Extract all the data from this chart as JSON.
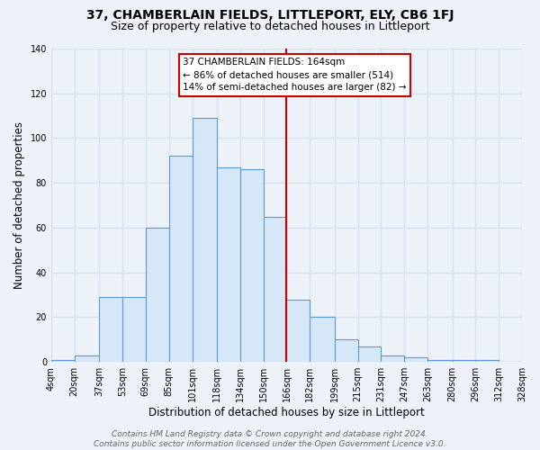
{
  "title": "37, CHAMBERLAIN FIELDS, LITTLEPORT, ELY, CB6 1FJ",
  "subtitle": "Size of property relative to detached houses in Littleport",
  "xlabel": "Distribution of detached houses by size in Littleport",
  "ylabel": "Number of detached properties",
  "bin_labels": [
    "4sqm",
    "20sqm",
    "37sqm",
    "53sqm",
    "69sqm",
    "85sqm",
    "101sqm",
    "118sqm",
    "134sqm",
    "150sqm",
    "166sqm",
    "182sqm",
    "199sqm",
    "215sqm",
    "231sqm",
    "247sqm",
    "263sqm",
    "280sqm",
    "296sqm",
    "312sqm",
    "328sqm"
  ],
  "bar_heights": [
    1,
    3,
    29,
    29,
    60,
    92,
    109,
    87,
    86,
    65,
    28,
    20,
    10,
    7,
    3,
    2,
    1,
    1,
    1,
    0
  ],
  "bin_edges": [
    4,
    20,
    37,
    53,
    69,
    85,
    101,
    118,
    134,
    150,
    166,
    182,
    199,
    215,
    231,
    247,
    263,
    280,
    296,
    312,
    328
  ],
  "bar_color": "#d6e8f7",
  "bar_edge_color": "#5b9bd5",
  "vline_x": 166,
  "vline_color": "#cc0000",
  "annotation_text": "37 CHAMBERLAIN FIELDS: 164sqm\n← 86% of detached houses are smaller (514)\n14% of semi-detached houses are larger (82) →",
  "annotation_box_color": "#ffffff",
  "annotation_box_edge_color": "#cc0000",
  "ylim": [
    0,
    140
  ],
  "yticks": [
    0,
    20,
    40,
    60,
    80,
    100,
    120,
    140
  ],
  "footer_line1": "Contains HM Land Registry data © Crown copyright and database right 2024.",
  "footer_line2": "Contains public sector information licensed under the Open Government Licence v3.0.",
  "background_color": "#edf2f9",
  "grid_color": "#d8e2ef",
  "title_fontsize": 10,
  "subtitle_fontsize": 9,
  "axis_label_fontsize": 8.5,
  "tick_fontsize": 7,
  "annotation_fontsize": 7.5,
  "footer_fontsize": 6.5
}
